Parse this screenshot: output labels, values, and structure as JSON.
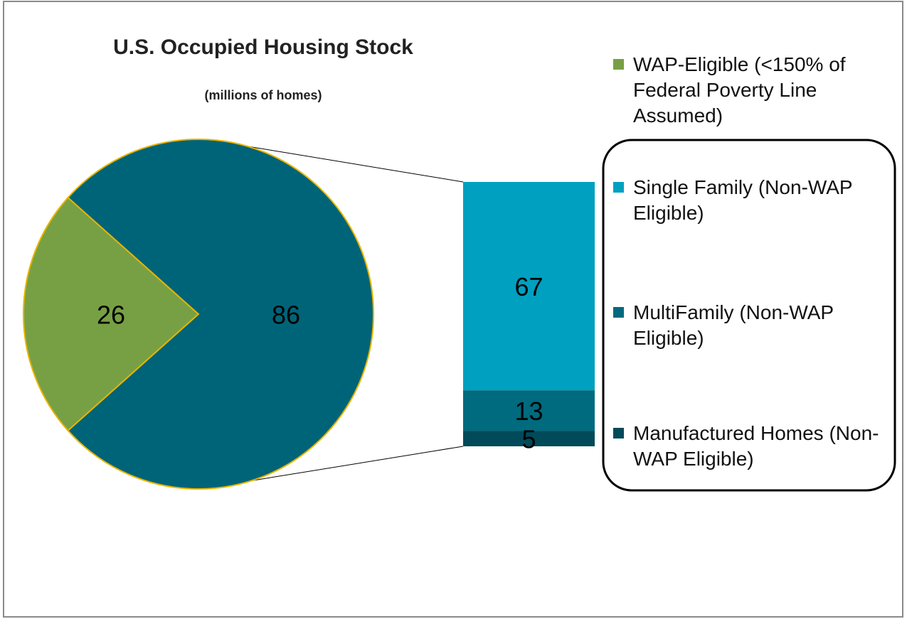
{
  "chart_data": {
    "type": "bar-of-pie",
    "title": "U.S. Occupied Housing Stock",
    "subtitle": "(millions of homes)",
    "pie": {
      "categories": [
        "WAP-Eligible (<150% of Federal Poverty Line Assumed)",
        null
      ],
      "values": [
        26,
        86
      ],
      "colors": [
        "#77a045",
        "#006478"
      ]
    },
    "bar": {
      "categories": [
        "Single Family (Non-WAP Eligible)",
        "MultiFamily (Non-WAP Eligible)",
        "Manufactured Homes (Non-WAP Eligible)"
      ],
      "values": [
        67,
        13,
        5
      ],
      "colors": [
        "#00a0c0",
        "#006a7e",
        "#004a5a"
      ]
    }
  }
}
